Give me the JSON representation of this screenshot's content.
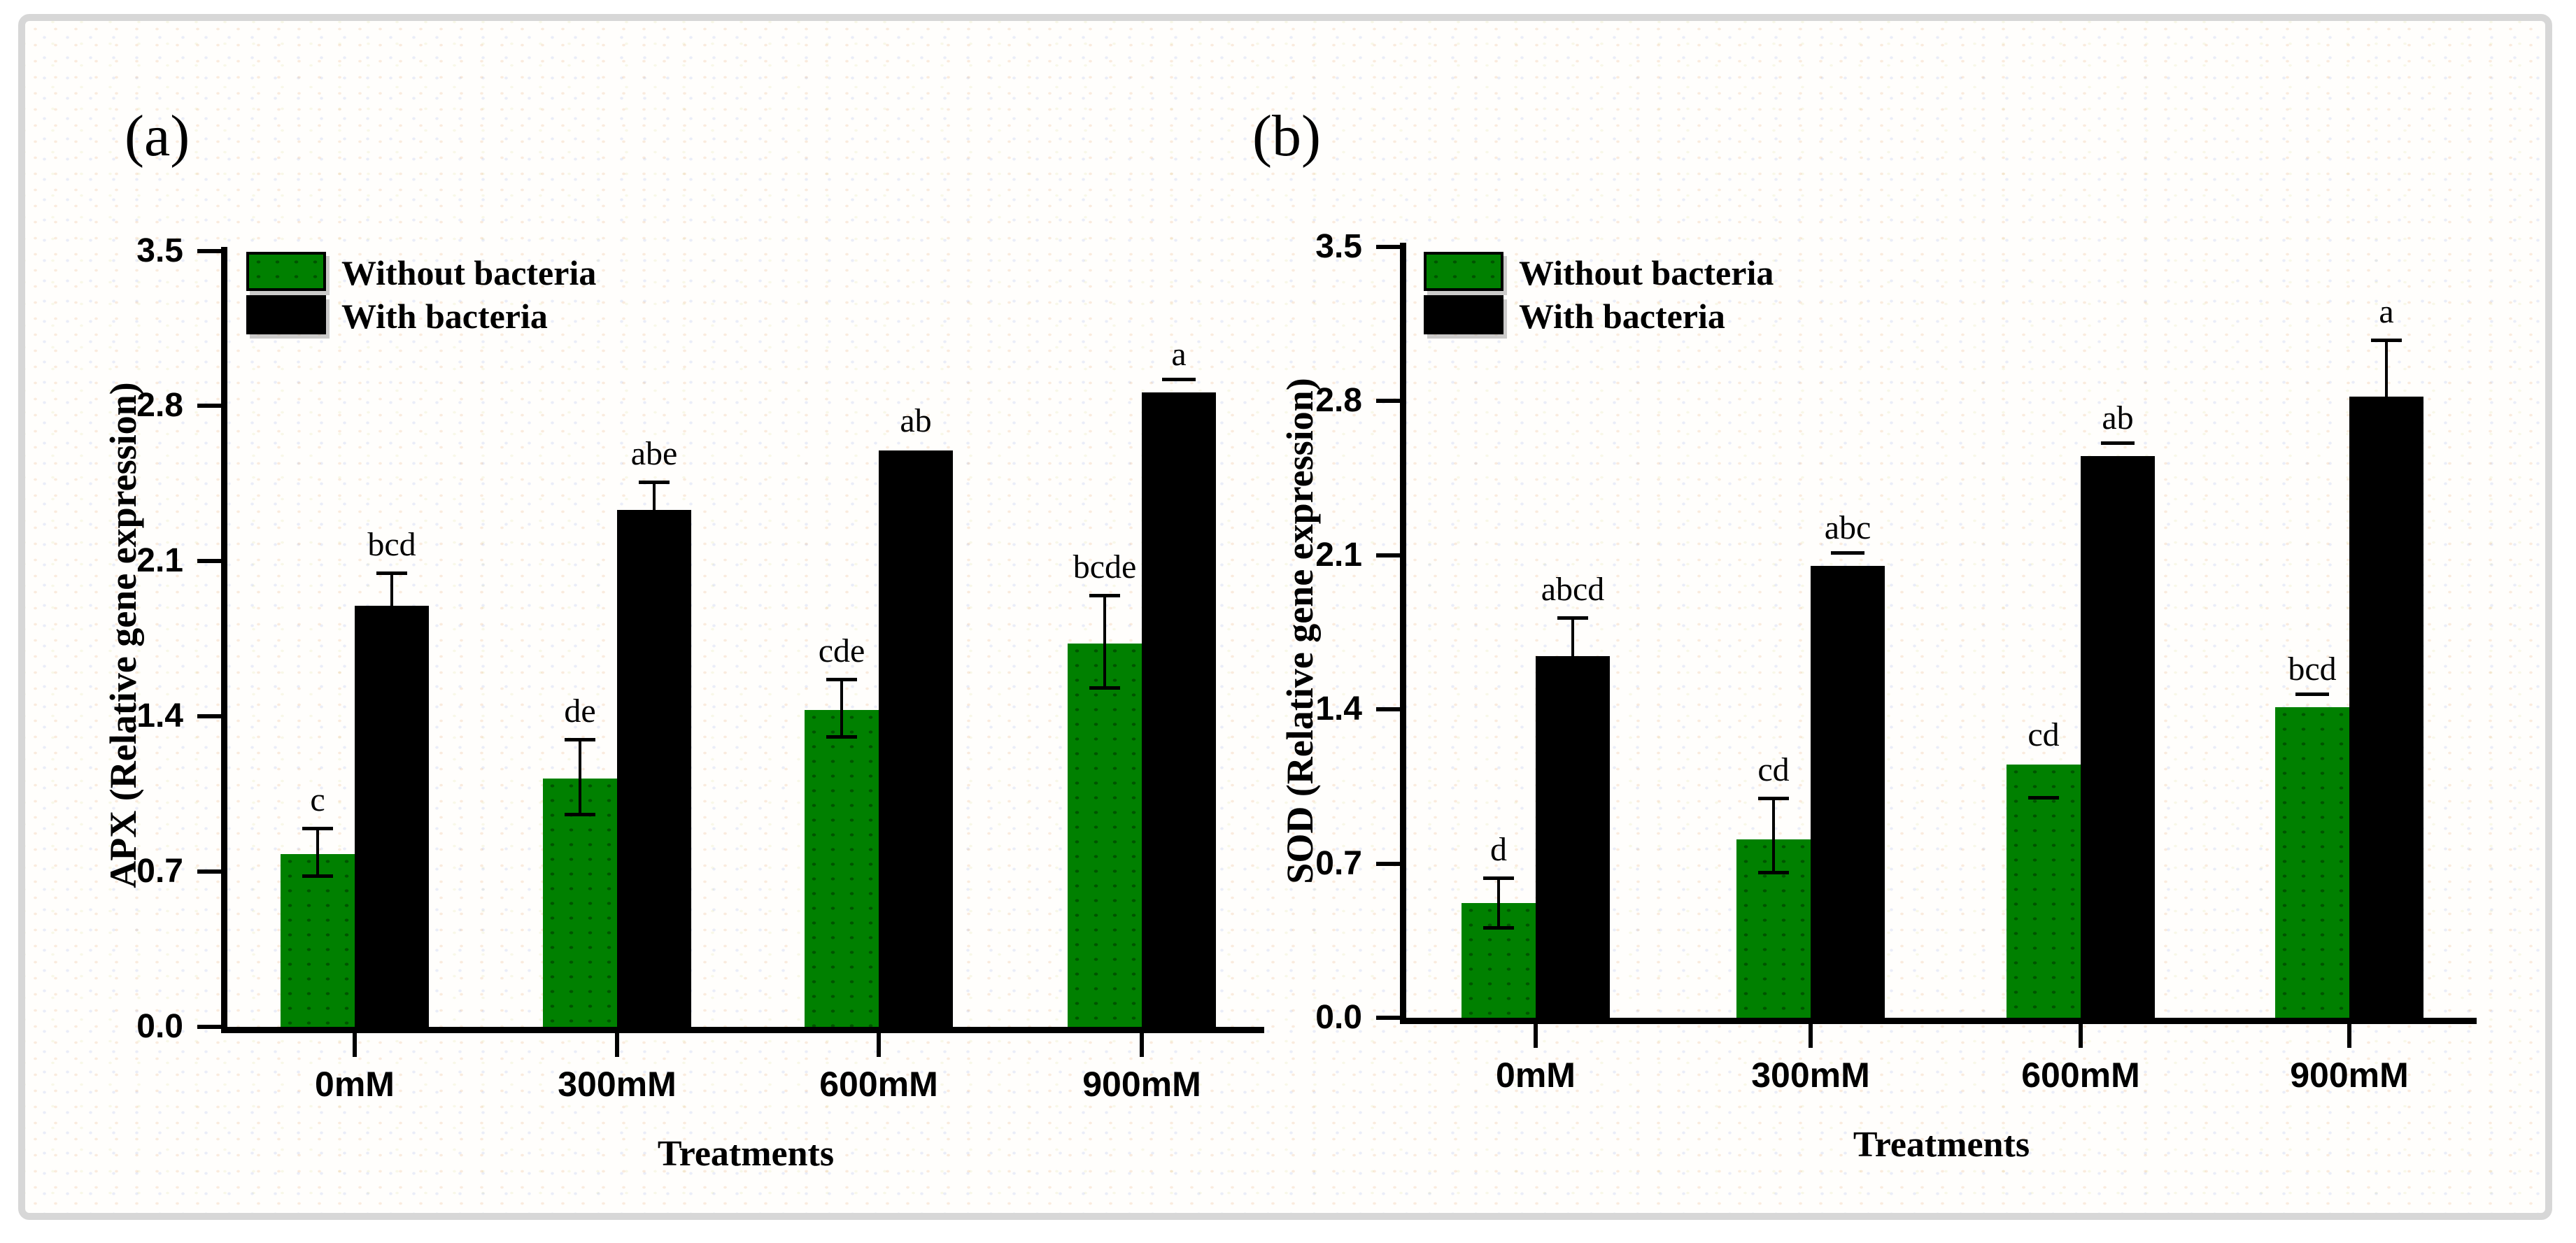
{
  "figure": {
    "frame_color": "#d7d7d7",
    "colors": {
      "without_bacteria": "#008000",
      "with_bacteria": "#000000"
    },
    "legend": {
      "without": "Without bacteria",
      "with": "With bacteria"
    }
  },
  "chart_data": [
    {
      "type": "bar",
      "panel_label": "(a)",
      "ylabel": "APX (Relative gene expression)",
      "xlabel": "Treatments",
      "ylim": [
        0.0,
        3.5
      ],
      "yticks": [
        "0.0",
        "0.7",
        "1.4",
        "2.1",
        "2.8",
        "3.5"
      ],
      "categories": [
        "0mM",
        "300mM",
        "600mM",
        "900mM"
      ],
      "grid": false,
      "legend_position": "top-left-inside",
      "series": [
        {
          "name": "Without bacteria",
          "color": "#008000",
          "values": [
            0.78,
            1.12,
            1.43,
            1.73
          ],
          "errors_up": [
            0.11,
            0.17,
            0.13,
            0.21
          ],
          "errors_down": [
            0.1,
            0.16,
            0.12,
            0.2
          ],
          "letters": [
            "c",
            "de",
            "cde",
            "bcde"
          ],
          "letter_underline": [
            false,
            false,
            false,
            false
          ]
        },
        {
          "name": "With bacteria",
          "color": "#000000",
          "values": [
            1.9,
            2.33,
            2.6,
            2.86
          ],
          "errors_up": [
            0.14,
            0.12,
            0,
            0
          ],
          "errors_down": [
            0,
            0,
            0,
            0
          ],
          "letters": [
            "bcd",
            "abe",
            "ab",
            "a"
          ],
          "letter_underline": [
            false,
            false,
            false,
            true
          ]
        }
      ]
    },
    {
      "type": "bar",
      "panel_label": "(b)",
      "ylabel": "SOD (Relative gene expression)",
      "xlabel": "Treatments",
      "ylim": [
        0.0,
        3.5
      ],
      "yticks": [
        "0.0",
        "0.7",
        "1.4",
        "2.1",
        "2.8",
        "3.5"
      ],
      "categories": [
        "0mM",
        "300mM",
        "600mM",
        "900mM"
      ],
      "grid": false,
      "legend_position": "top-left-inside",
      "series": [
        {
          "name": "Without bacteria",
          "color": "#008000",
          "values": [
            0.52,
            0.81,
            1.15,
            1.41
          ],
          "errors_up": [
            0.11,
            0.18,
            0,
            0
          ],
          "errors_down": [
            0.11,
            0.15,
            0.15,
            0
          ],
          "letters": [
            "d",
            "cd",
            "cd",
            "bcd"
          ],
          "letter_underline": [
            false,
            false,
            false,
            true
          ]
        },
        {
          "name": "With bacteria",
          "color": "#000000",
          "values": [
            1.64,
            2.05,
            2.55,
            2.82
          ],
          "errors_up": [
            0.17,
            0,
            0,
            0.25
          ],
          "errors_down": [
            0,
            0,
            0,
            0
          ],
          "letters": [
            "abcd",
            "abc",
            "ab",
            "a"
          ],
          "letter_underline": [
            false,
            true,
            true,
            false
          ]
        }
      ]
    }
  ]
}
